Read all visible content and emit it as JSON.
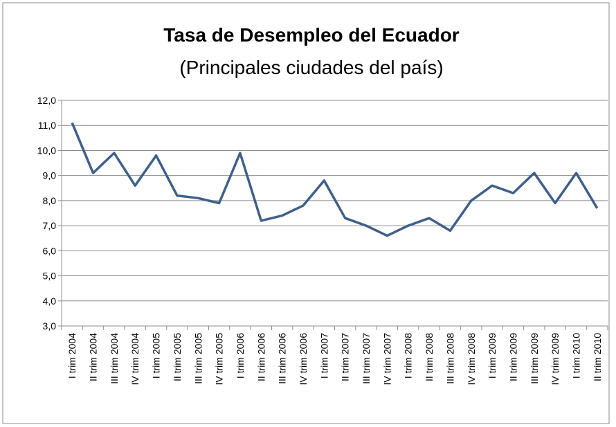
{
  "chart_data": {
    "type": "line",
    "title": "Tasa de Desempleo del Ecuador",
    "subtitle": "(Principales ciudades del país)",
    "categories": [
      "I trim 2004",
      "II trim 2004",
      "III trim 2004",
      "IV trim 2004",
      "I trim 2005",
      "II trim 2005",
      "III trim 2005",
      "IV trim 2005",
      "I trim 2006",
      "II trim 2006",
      "III trim 2006",
      "IV trim 2006",
      "I trim 2007",
      "II trim 2007",
      "III trim 2007",
      "IV trim 2007",
      "I trim 2008",
      "II trim 2008",
      "III trim 2008",
      "IV trim 2008",
      "I trim 2009",
      "II trim 2009",
      "III trim 2009",
      "IV trim 2009",
      "I trim 2010",
      "II trim 2010"
    ],
    "values": [
      11.1,
      9.1,
      9.9,
      8.6,
      9.8,
      8.2,
      8.1,
      7.9,
      9.9,
      7.2,
      7.4,
      7.8,
      8.8,
      7.3,
      7.0,
      6.6,
      7.0,
      7.3,
      6.8,
      8.0,
      8.6,
      8.3,
      9.1,
      7.9,
      9.1,
      7.7
    ],
    "color": "#3e5f8a",
    "ylim": [
      3,
      12
    ],
    "yticks": [
      {
        "value": 3,
        "label": "3,0"
      },
      {
        "value": 4,
        "label": "4,0"
      },
      {
        "value": 5,
        "label": "5,0"
      },
      {
        "value": 6,
        "label": "6,0"
      },
      {
        "value": 7,
        "label": "7,0"
      },
      {
        "value": 8,
        "label": "8,0"
      },
      {
        "value": 9,
        "label": "9,0"
      },
      {
        "value": 10,
        "label": "10,0"
      },
      {
        "value": 11,
        "label": "11,0"
      },
      {
        "value": 12,
        "label": "12,0"
      }
    ],
    "grid": true
  }
}
